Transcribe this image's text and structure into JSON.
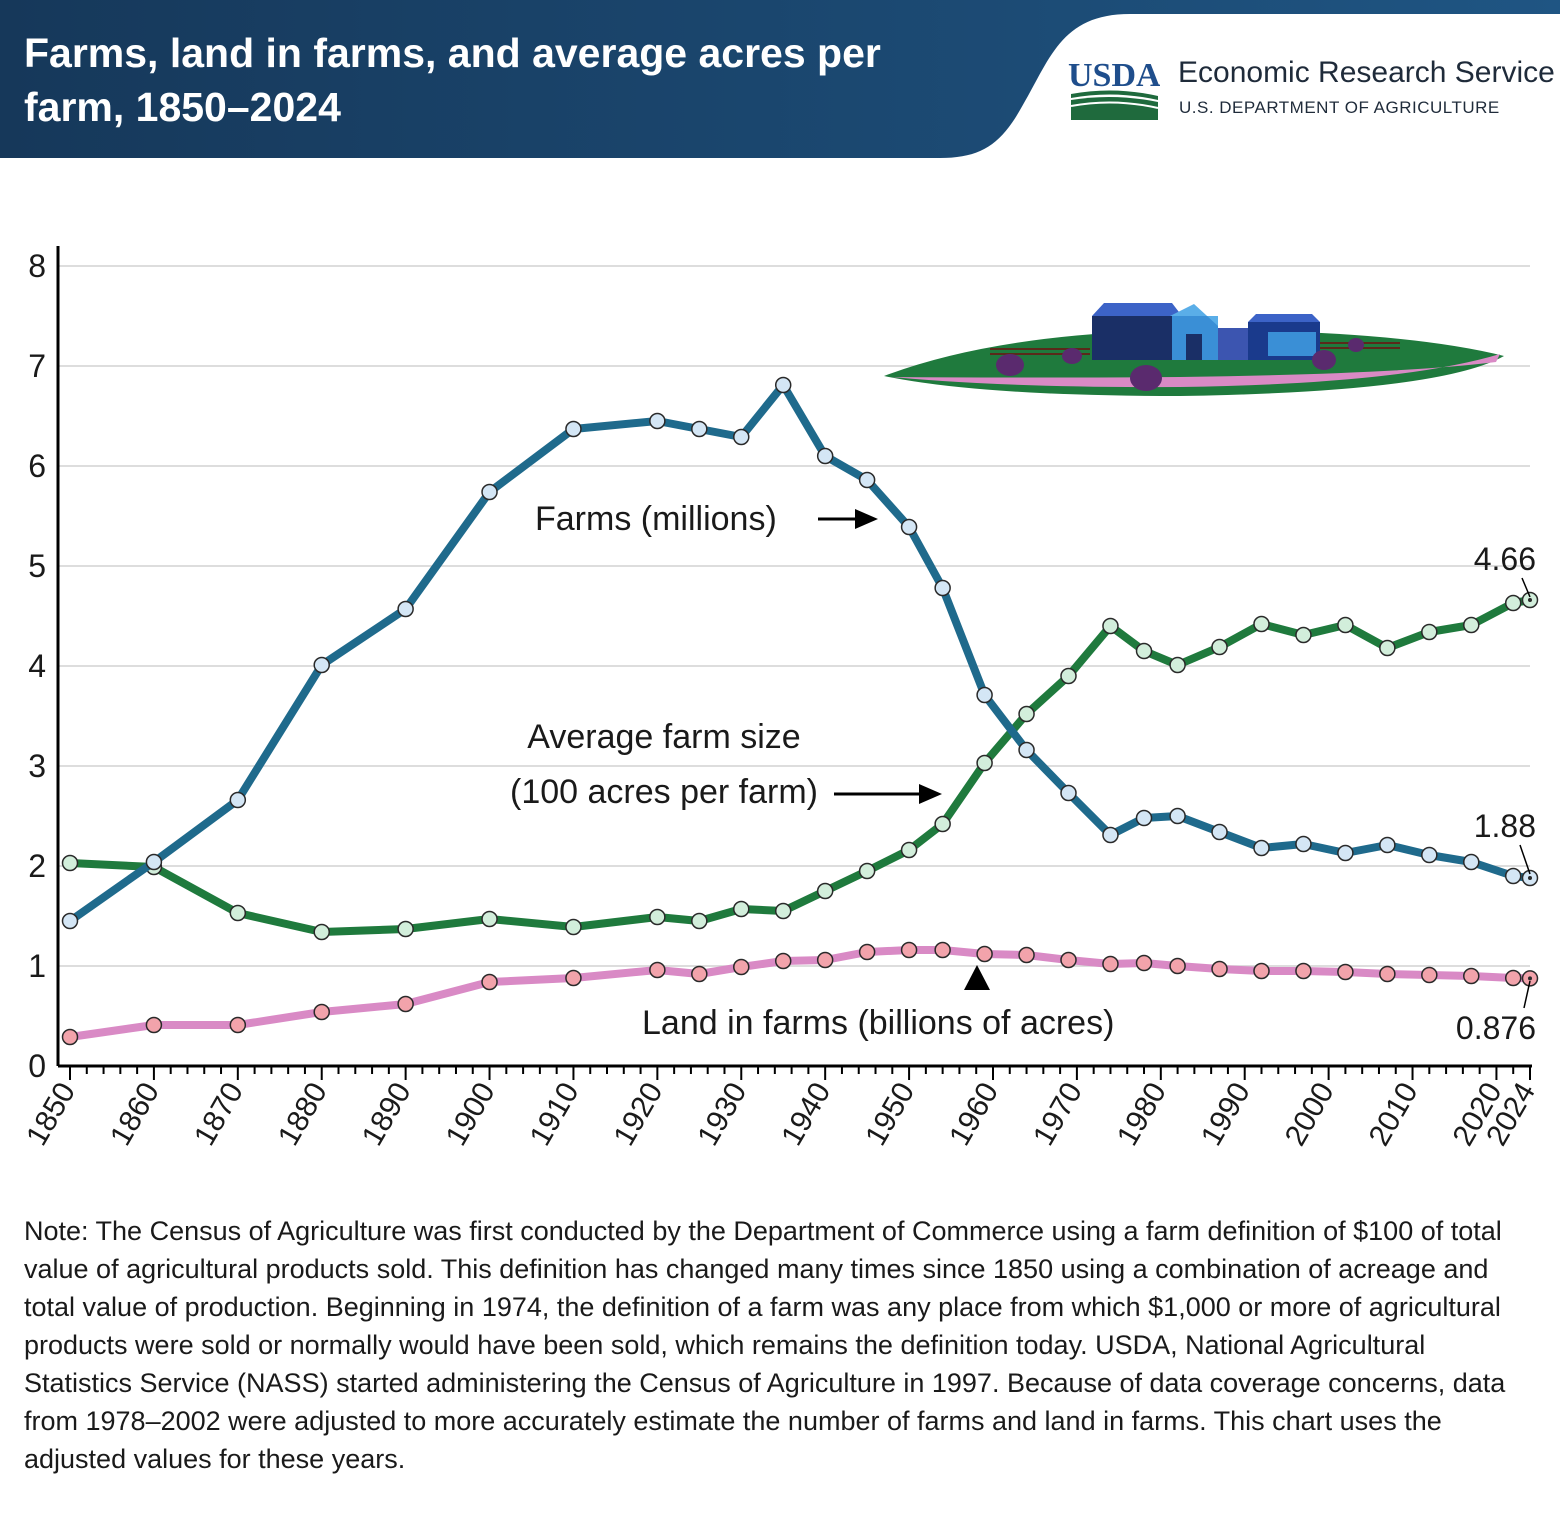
{
  "title": "Farms, land in farms, and average acres per farm, 1850–2024",
  "logo": {
    "mark_text": "USDA",
    "service": "Economic Research Service",
    "department": "U.S. DEPARTMENT OF AGRICULTURE"
  },
  "colors": {
    "header": "#1b4a72",
    "farms": "#1f6a8c",
    "avg_size": "#1f7a3d",
    "land": "#d98ac5"
  },
  "chart_data": {
    "type": "line",
    "ylim": [
      0,
      8
    ],
    "yticks": [
      0,
      1,
      2,
      3,
      4,
      5,
      6,
      7,
      8
    ],
    "xlim": [
      1850,
      2024
    ],
    "xtick_labels": [
      "1850",
      "1860",
      "1870",
      "1880",
      "1890",
      "1900",
      "1910",
      "1920",
      "1930",
      "1940",
      "1950",
      "1960",
      "1970",
      "1980",
      "1990",
      "2000",
      "2010",
      "2020",
      "2024"
    ],
    "grid": true,
    "series": [
      {
        "name": "Farms (millions)",
        "x": [
          1850,
          1860,
          1870,
          1880,
          1890,
          1900,
          1910,
          1920,
          1925,
          1930,
          1935,
          1940,
          1945,
          1950,
          1954,
          1959,
          1964,
          1969,
          1974,
          1978,
          1982,
          1987,
          1992,
          1997,
          2002,
          2007,
          2012,
          2017,
          2022,
          2024
        ],
        "y": [
          1.45,
          2.04,
          2.66,
          4.01,
          4.57,
          5.74,
          6.37,
          6.45,
          6.37,
          6.29,
          6.81,
          6.1,
          5.86,
          5.39,
          4.78,
          3.71,
          3.16,
          2.73,
          2.31,
          2.48,
          2.5,
          2.34,
          2.18,
          2.22,
          2.13,
          2.21,
          2.11,
          2.04,
          1.9,
          1.88
        ]
      },
      {
        "name": "Average farm size (100 acres per farm)",
        "x": [
          1850,
          1860,
          1870,
          1880,
          1890,
          1900,
          1910,
          1920,
          1925,
          1930,
          1935,
          1940,
          1945,
          1950,
          1954,
          1959,
          1964,
          1969,
          1974,
          1978,
          1982,
          1987,
          1992,
          1997,
          2002,
          2007,
          2012,
          2017,
          2022,
          2024
        ],
        "y": [
          2.03,
          1.99,
          1.53,
          1.34,
          1.37,
          1.47,
          1.39,
          1.49,
          1.45,
          1.57,
          1.55,
          1.75,
          1.95,
          2.16,
          2.42,
          3.03,
          3.52,
          3.9,
          4.4,
          4.15,
          4.01,
          4.19,
          4.42,
          4.31,
          4.41,
          4.18,
          4.34,
          4.41,
          4.63,
          4.66
        ]
      },
      {
        "name": "Land in farms (billions of acres)",
        "x": [
          1850,
          1860,
          1870,
          1880,
          1890,
          1900,
          1910,
          1920,
          1925,
          1930,
          1935,
          1940,
          1945,
          1950,
          1954,
          1959,
          1964,
          1969,
          1974,
          1978,
          1982,
          1987,
          1992,
          1997,
          2002,
          2007,
          2012,
          2017,
          2022,
          2024
        ],
        "y": [
          0.29,
          0.41,
          0.41,
          0.54,
          0.62,
          0.84,
          0.88,
          0.96,
          0.92,
          0.99,
          1.05,
          1.06,
          1.14,
          1.16,
          1.16,
          1.12,
          1.11,
          1.06,
          1.02,
          1.03,
          1.0,
          0.97,
          0.95,
          0.95,
          0.94,
          0.92,
          0.91,
          0.9,
          0.88,
          0.876
        ]
      }
    ],
    "annotations": {
      "farms_label": "Farms (millions)",
      "avg_label_line1": "Average farm size",
      "avg_label_line2": "(100 acres per farm)",
      "land_label": "Land in farms (billions of acres)",
      "end_farms": "1.88",
      "end_avg": "4.66",
      "end_land": "0.876"
    }
  },
  "note": "Note: The Census of Agriculture was first conducted by the Department of Commerce using a farm definition of $100 of total value of agricultural products sold. This definition has changed many times since 1850 using a combination of acreage and total value of production. Beginning in 1974, the definition of a farm was any place from which $1,000 or more of agricultural products were sold or normally would have been sold, which remains the definition today. USDA, National Agricultural Statistics Service (NASS) started administering the Census of Agriculture in 1997. Because of data coverage concerns, data from 1978–2002 were adjusted to more accurately estimate the number of farms and land in farms. This chart uses the adjusted values for these years."
}
